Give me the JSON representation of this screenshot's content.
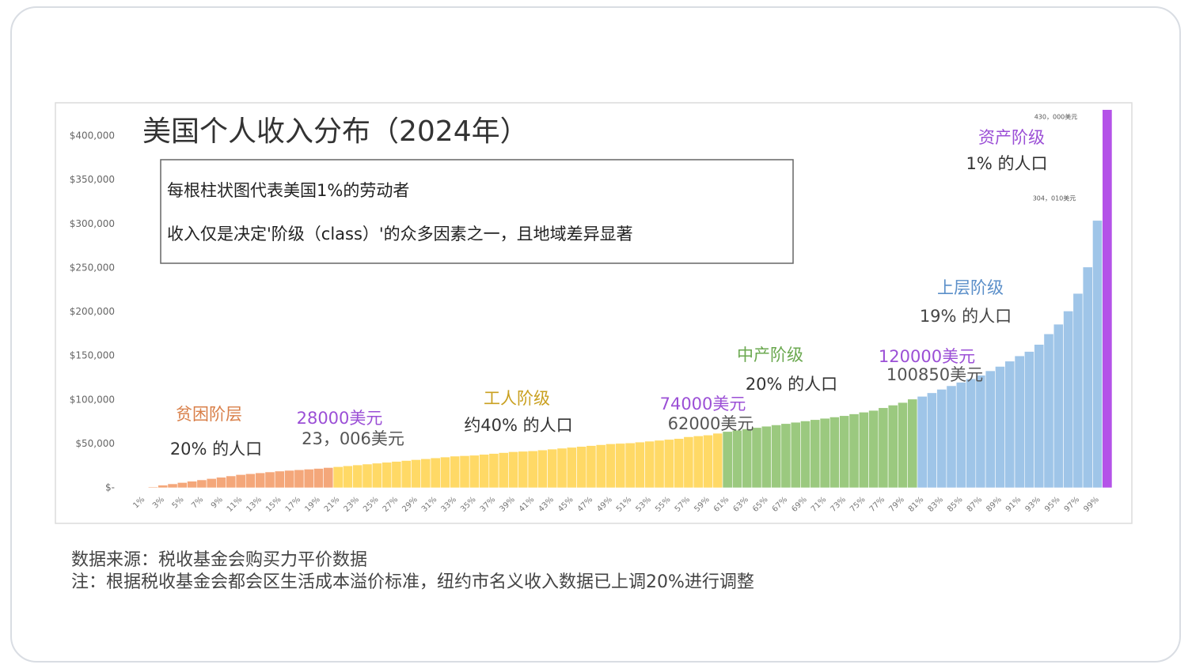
{
  "chart_data": {
    "type": "bar",
    "title": "美国个人收入分布（2024年）",
    "notes": [
      "每根柱状图代表美国1%的劳动者",
      "收入仅是决定'阶级（class）'的众多因素之一，且地域差异显著"
    ],
    "categories": [
      "1%",
      null,
      "3%",
      null,
      "5%",
      null,
      "7%",
      null,
      "9%",
      null,
      "11%",
      null,
      "13%",
      null,
      "15%",
      null,
      "17%",
      null,
      "19%",
      null,
      "21%",
      null,
      "23%",
      null,
      "25%",
      null,
      "27%",
      null,
      "29%",
      null,
      "31%",
      null,
      "33%",
      null,
      "35%",
      null,
      "37%",
      null,
      "39%",
      null,
      "41%",
      null,
      "43%",
      null,
      "45%",
      null,
      "47%",
      null,
      "49%",
      null,
      "51%",
      null,
      "53%",
      null,
      "55%",
      null,
      "57%",
      null,
      "59%",
      null,
      "61%",
      null,
      "63%",
      null,
      "65%",
      null,
      "67%",
      null,
      "69%",
      null,
      "71%",
      null,
      "73%",
      null,
      "75%",
      null,
      "77%",
      null,
      "79%",
      null,
      "81%",
      null,
      "83%",
      null,
      "85%",
      null,
      "87%",
      null,
      "89%",
      null,
      "91%",
      null,
      "93%",
      null,
      "95%",
      null,
      "97%",
      null,
      "99%",
      null
    ],
    "values": [
      0,
      1000,
      3000,
      4500,
      6000,
      7500,
      9000,
      10500,
      12000,
      13500,
      15000,
      16000,
      17000,
      18000,
      19000,
      19800,
      20500,
      21200,
      22000,
      23006,
      24000,
      25000,
      26000,
      27000,
      28000,
      29000,
      30000,
      31000,
      32000,
      33000,
      34000,
      35000,
      36000,
      36500,
      37000,
      38000,
      39000,
      40000,
      41000,
      41500,
      42000,
      43000,
      44000,
      45000,
      46000,
      47000,
      48000,
      49000,
      50000,
      50500,
      51000,
      52000,
      53000,
      54000,
      55000,
      56000,
      58000,
      59000,
      60000,
      62000,
      64000,
      65500,
      67000,
      68500,
      70000,
      71500,
      73000,
      74500,
      76000,
      77500,
      79000,
      80500,
      82000,
      84000,
      86000,
      88000,
      91000,
      94000,
      97000,
      100850,
      104000,
      108000,
      112000,
      116000,
      120000,
      124000,
      128000,
      133000,
      138000,
      144000,
      150000,
      155000,
      163000,
      175000,
      186000,
      201000,
      221000,
      251000,
      304010,
      430000
    ],
    "value_labels": [
      null,
      null,
      null,
      null,
      null,
      null,
      null,
      null,
      null,
      null,
      null,
      null,
      null,
      null,
      null,
      null,
      null,
      null,
      null,
      "23，006美元",
      null,
      null,
      null,
      null,
      null,
      null,
      null,
      null,
      null,
      null,
      null,
      null,
      null,
      null,
      null,
      null,
      null,
      null,
      null,
      null,
      null,
      null,
      null,
      null,
      null,
      null,
      null,
      null,
      null,
      null,
      null,
      null,
      null,
      null,
      null,
      null,
      null,
      null,
      null,
      "62000美元",
      null,
      null,
      null,
      null,
      null,
      null,
      null,
      null,
      null,
      null,
      null,
      null,
      null,
      null,
      null,
      null,
      null,
      null,
      null,
      "100850美元",
      null,
      null,
      null,
      null,
      null,
      null,
      null,
      null,
      null,
      null,
      null,
      null,
      null,
      null,
      null,
      null,
      null,
      null,
      "304，010美元",
      "430，000美元"
    ],
    "colors": [
      "#f4a77a",
      "#f4a77a",
      "#f4a77a",
      "#f4a77a",
      "#f4a77a",
      "#f4a77a",
      "#f4a77a",
      "#f4a77a",
      "#f4a77a",
      "#f4a77a",
      "#f4a77a",
      "#f4a77a",
      "#f4a77a",
      "#f4a77a",
      "#f4a77a",
      "#f4a77a",
      "#f4a77a",
      "#f4a77a",
      "#f4a77a",
      "#f4a77a",
      "#ffd966",
      "#ffd966",
      "#ffd966",
      "#ffd966",
      "#ffd966",
      "#ffd966",
      "#ffd966",
      "#ffd966",
      "#ffd966",
      "#ffd966",
      "#ffd966",
      "#ffd966",
      "#ffd966",
      "#ffd966",
      "#ffd966",
      "#ffd966",
      "#ffd966",
      "#ffd966",
      "#ffd966",
      "#ffd966",
      "#ffd966",
      "#ffd966",
      "#ffd966",
      "#ffd966",
      "#ffd966",
      "#ffd966",
      "#ffd966",
      "#ffd966",
      "#ffd966",
      "#ffd966",
      "#ffd966",
      "#ffd966",
      "#ffd966",
      "#ffd966",
      "#ffd966",
      "#ffd966",
      "#ffd966",
      "#ffd966",
      "#ffd966",
      "#ffd966",
      "#9bc97f",
      "#9bc97f",
      "#9bc97f",
      "#9bc97f",
      "#9bc97f",
      "#9bc97f",
      "#9bc97f",
      "#9bc97f",
      "#9bc97f",
      "#9bc97f",
      "#9bc97f",
      "#9bc97f",
      "#9bc97f",
      "#9bc97f",
      "#9bc97f",
      "#9bc97f",
      "#9bc97f",
      "#9bc97f",
      "#9bc97f",
      "#9bc97f",
      "#9fc5e8",
      "#9fc5e8",
      "#9fc5e8",
      "#9fc5e8",
      "#9fc5e8",
      "#9fc5e8",
      "#9fc5e8",
      "#9fc5e8",
      "#9fc5e8",
      "#9fc5e8",
      "#9fc5e8",
      "#9fc5e8",
      "#9fc5e8",
      "#9fc5e8",
      "#9fc5e8",
      "#9fc5e8",
      "#9fc5e8",
      "#9fc5e8",
      "#9fc5e8",
      "#b452e8"
    ],
    "ylim": [
      0,
      440000
    ],
    "yticks": [
      {
        "value": 0,
        "label": "$-"
      },
      {
        "value": 50000,
        "label": "$50,000"
      },
      {
        "value": 100000,
        "label": "$100,000"
      },
      {
        "value": 150000,
        "label": "$150,000"
      },
      {
        "value": 200000,
        "label": "$200,000"
      },
      {
        "value": 250000,
        "label": "$250,000"
      },
      {
        "value": 300000,
        "label": "$300,000"
      },
      {
        "value": 350000,
        "label": "$350,000"
      },
      {
        "value": 400000,
        "label": "$400,000"
      }
    ],
    "annotations": [
      "贫困阶层",
      "20% 的人口",
      "28000美元",
      "工人阶级",
      "约40% 的人口",
      "74000美元",
      "中产阶级",
      "20% 的人口",
      "120000美元",
      "上层阶级",
      "19% 的人口",
      "资产阶级",
      "1% 的人口"
    ],
    "source": "数据来源：税收基金会购买力平价数据",
    "note": "注：根据税收基金会都会区生活成本溢价标准，纽约市名义收入数据已上调20%进行调整"
  }
}
